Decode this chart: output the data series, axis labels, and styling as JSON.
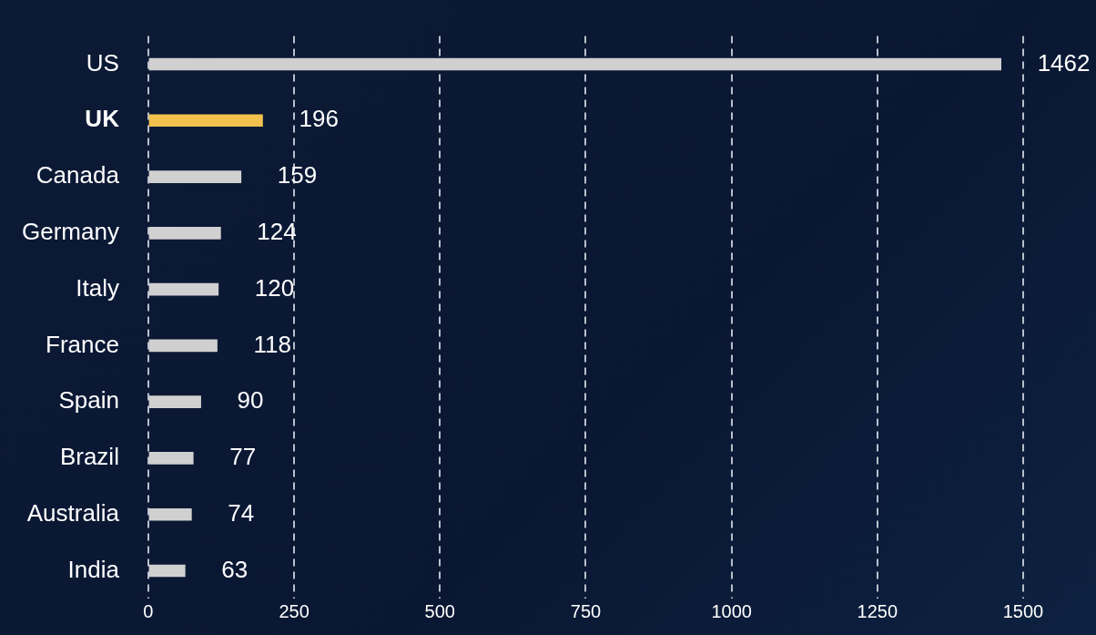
{
  "chart_data": {
    "type": "bar",
    "orientation": "horizontal",
    "categories": [
      "US",
      "UK",
      "Canada",
      "Germany",
      "Italy",
      "France",
      "Spain",
      "Brazil",
      "Australia",
      "India"
    ],
    "values": [
      1462,
      196,
      159,
      124,
      120,
      118,
      90,
      77,
      74,
      63
    ],
    "colors": [
      "#d0d0d0",
      "#f2c14e",
      "#d0d0d0",
      "#d0d0d0",
      "#d0d0d0",
      "#d0d0d0",
      "#d0d0d0",
      "#d0d0d0",
      "#d0d0d0",
      "#d0d0d0"
    ],
    "xlim": [
      0,
      1500
    ],
    "xticks": [
      0,
      250,
      500,
      750,
      1000,
      1250,
      1500
    ],
    "grid": "x",
    "legend": false,
    "data_labels": true
  }
}
